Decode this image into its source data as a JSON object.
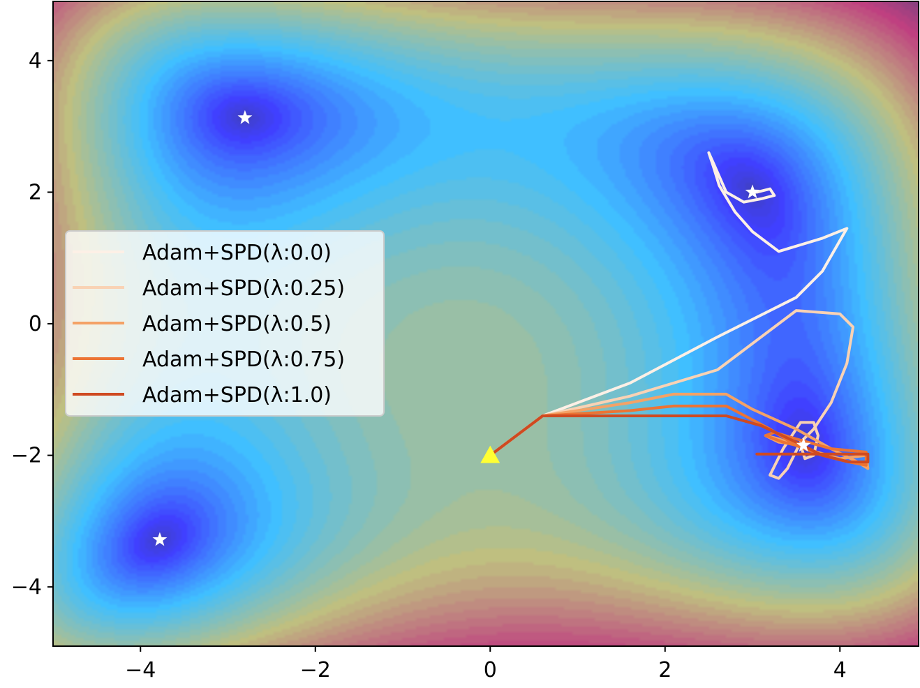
{
  "chart_data": {
    "type": "line",
    "title": "",
    "xlabel": "",
    "ylabel": "",
    "xlim": [
      -5,
      4.9
    ],
    "ylim": [
      -4.9,
      4.9
    ],
    "xticks": [
      -4,
      -2,
      0,
      2,
      4
    ],
    "yticks": [
      -4,
      -2,
      0,
      2,
      4
    ],
    "xtick_labels": [
      "−4",
      "−2",
      "0",
      "2",
      "4"
    ],
    "ytick_labels": [
      "−4",
      "−2",
      "0",
      "2",
      "4"
    ],
    "grid": false,
    "background": "filled contour plot of a Himmelblau-like loss surface with four minima",
    "legend_position": "center-left",
    "minima": [
      {
        "x": -2.805,
        "y": 3.131
      },
      {
        "x": 3.0,
        "y": 2.0
      },
      {
        "x": -3.779,
        "y": -3.283
      },
      {
        "x": 3.584,
        "y": -1.848
      }
    ],
    "start_point": {
      "x": 0.0,
      "y": -2.0
    },
    "series": [
      {
        "name": "Adam+SPD(λ:0.0)",
        "color": "#fdf0e6",
        "points": [
          [
            0,
            -2
          ],
          [
            0.6,
            -1.4
          ],
          [
            1.6,
            -0.9
          ],
          [
            2.6,
            -0.2
          ],
          [
            3.5,
            0.4
          ],
          [
            3.8,
            0.8
          ],
          [
            4.08,
            1.45
          ],
          [
            3.8,
            1.3
          ],
          [
            3.3,
            1.1
          ],
          [
            3.0,
            1.4
          ],
          [
            2.8,
            1.7
          ],
          [
            2.62,
            2.1
          ],
          [
            2.55,
            2.4
          ],
          [
            2.5,
            2.6
          ],
          [
            2.55,
            2.45
          ],
          [
            2.7,
            2.0
          ],
          [
            2.9,
            1.85
          ],
          [
            3.1,
            1.9
          ],
          [
            3.25,
            1.95
          ],
          [
            3.2,
            2.05
          ],
          [
            3.05,
            2.0
          ],
          [
            3.0,
            2.0
          ]
        ]
      },
      {
        "name": "Adam+SPD(λ:0.25)",
        "color": "#f9d2b4",
        "points": [
          [
            0,
            -2
          ],
          [
            0.6,
            -1.4
          ],
          [
            1.6,
            -1.1
          ],
          [
            2.6,
            -0.7
          ],
          [
            3.0,
            -0.3
          ],
          [
            3.5,
            0.2
          ],
          [
            4.0,
            0.15
          ],
          [
            4.15,
            -0.05
          ],
          [
            4.08,
            -0.6
          ],
          [
            3.9,
            -1.2
          ],
          [
            3.7,
            -1.6
          ],
          [
            3.55,
            -1.8
          ],
          [
            3.4,
            -2.2
          ],
          [
            3.3,
            -2.35
          ],
          [
            3.2,
            -2.3
          ],
          [
            3.35,
            -1.9
          ],
          [
            3.55,
            -1.5
          ],
          [
            3.7,
            -1.5
          ],
          [
            3.75,
            -1.7
          ],
          [
            3.7,
            -2.0
          ],
          [
            3.6,
            -2.05
          ],
          [
            3.55,
            -1.85
          ]
        ]
      },
      {
        "name": "Adam+SPD(λ:0.5)",
        "color": "#f4a266",
        "points": [
          [
            0,
            -2
          ],
          [
            0.6,
            -1.4
          ],
          [
            1.6,
            -1.2
          ],
          [
            2.1,
            -1.07
          ],
          [
            2.7,
            -1.07
          ],
          [
            3.0,
            -1.3
          ],
          [
            3.5,
            -1.6
          ],
          [
            3.9,
            -1.9
          ],
          [
            4.2,
            -2.1
          ],
          [
            4.32,
            -2.2
          ],
          [
            4.3,
            -2.0
          ],
          [
            4.0,
            -2.05
          ],
          [
            3.6,
            -1.9
          ],
          [
            3.3,
            -1.75
          ],
          [
            3.15,
            -1.7
          ],
          [
            3.3,
            -1.8
          ],
          [
            3.58,
            -1.85
          ]
        ]
      },
      {
        "name": "Adam+SPD(λ:0.75)",
        "color": "#ec7434",
        "points": [
          [
            0,
            -2
          ],
          [
            0.6,
            -1.4
          ],
          [
            1.6,
            -1.32
          ],
          [
            2.1,
            -1.25
          ],
          [
            2.7,
            -1.25
          ],
          [
            3.2,
            -1.6
          ],
          [
            3.5,
            -1.85
          ],
          [
            3.8,
            -2.0
          ],
          [
            4.1,
            -2.1
          ],
          [
            4.3,
            -2.15
          ],
          [
            4.3,
            -1.95
          ],
          [
            3.9,
            -1.9
          ],
          [
            3.5,
            -1.75
          ],
          [
            3.25,
            -1.65
          ],
          [
            3.15,
            -1.7
          ],
          [
            3.35,
            -1.8
          ],
          [
            3.6,
            -1.88
          ]
        ]
      },
      {
        "name": "Adam+SPD(λ:1.0)",
        "color": "#cf4a21",
        "points": [
          [
            0,
            -2
          ],
          [
            0.6,
            -1.4
          ],
          [
            1.6,
            -1.4
          ],
          [
            2.7,
            -1.4
          ],
          [
            3.1,
            -1.55
          ],
          [
            3.5,
            -1.8
          ],
          [
            3.8,
            -2.0
          ],
          [
            4.1,
            -2.1
          ],
          [
            4.32,
            -2.1
          ],
          [
            4.32,
            -1.98
          ],
          [
            3.9,
            -1.98
          ],
          [
            3.5,
            -1.98
          ],
          [
            3.05,
            -1.98
          ]
        ]
      }
    ]
  }
}
